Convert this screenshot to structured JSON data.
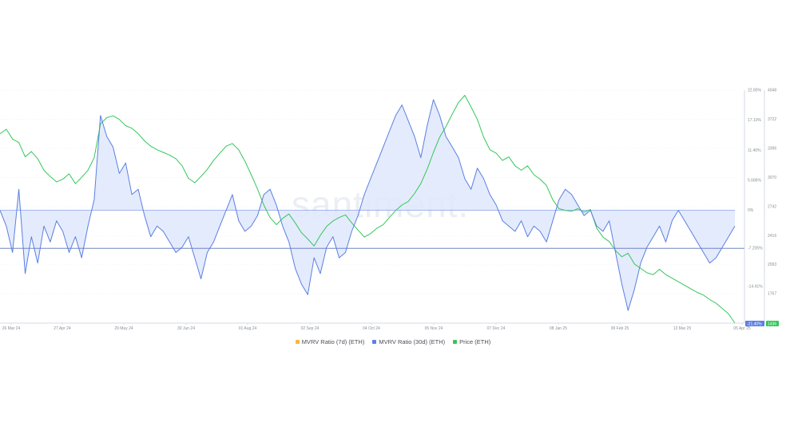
{
  "chart_data": {
    "type": "line",
    "watermark": "santiment.",
    "x_ticks": [
      "26 Mar 24",
      "27 Apr 24",
      "29 May 24",
      "30 Jun 24",
      "01 Aug 24",
      "02 Sep 24",
      "04 Oct 24",
      "05 Nov 24",
      "07 Dec 24",
      "08 Jan 25",
      "09 Feb 25",
      "13 Mar 25",
      "05 Apr 25"
    ],
    "y_left_ticks": [
      "22.80%",
      "17.10%",
      "11.40%",
      "5.686%",
      "0%",
      "-7.205%",
      "-14.41%",
      "-21.40%"
    ],
    "y_right_ticks": [
      "4048",
      "3722",
      "3396",
      "3070",
      "2742",
      "2416",
      "2093",
      "1767",
      "1436"
    ],
    "mvrv_ylim": [
      -21.4,
      22.8
    ],
    "price_ylim": [
      1436,
      4048
    ],
    "mvrv_latest_label": "-21.40%",
    "price_latest_label": "1436",
    "colors": {
      "mvrv_7d": "#f5b83d",
      "mvrv_30d": "#5b7fe3",
      "mvrv_fill": "#dfe7fb",
      "price": "#34c759",
      "grid": "#eef0f4",
      "axis": "#c9cedd",
      "reference_line": "#6e86c4"
    },
    "series": [
      {
        "name": "MVRV Ratio (7d) (ETH)",
        "values": []
      },
      {
        "name": "MVRV Ratio (30d) (ETH)",
        "values": [
          0,
          -3,
          -8,
          4,
          -12,
          -5,
          -10,
          -3,
          -6,
          -2,
          -4,
          -8,
          -5,
          -9,
          -3,
          2,
          18,
          14,
          12,
          7,
          9,
          3,
          4,
          -1,
          -5,
          -3,
          -4,
          -6,
          -8,
          -7,
          -5,
          -9,
          -13,
          -8,
          -6,
          -3,
          0,
          3,
          -2,
          -4,
          -3,
          -1,
          3,
          4,
          1,
          -3,
          -6,
          -11,
          -14,
          -16,
          -9,
          -12,
          -7,
          -5,
          -9,
          -8,
          -4,
          -1,
          3,
          6,
          9,
          12,
          15,
          18,
          20,
          17,
          14,
          10,
          16,
          21,
          18,
          14,
          12,
          10,
          6,
          4,
          8,
          6,
          3,
          1,
          -2,
          -3,
          -4,
          -2,
          -5,
          -3,
          -4,
          -6,
          -2,
          2,
          4,
          3,
          1,
          -1,
          0,
          -3,
          -4,
          -2,
          -8,
          -14,
          -19,
          -15,
          -10,
          -7,
          -5,
          -3,
          -6,
          -2,
          0,
          -2,
          -4,
          -6,
          -8,
          -10,
          -9,
          -7,
          -5,
          -3
        ]
      },
      {
        "name": "Price (ETH)",
        "values": [
          3560,
          3610,
          3500,
          3460,
          3300,
          3360,
          3280,
          3150,
          3080,
          3020,
          3050,
          3110,
          3000,
          3070,
          3150,
          3290,
          3670,
          3740,
          3760,
          3720,
          3650,
          3620,
          3560,
          3480,
          3420,
          3380,
          3350,
          3320,
          3280,
          3200,
          3060,
          3010,
          3080,
          3160,
          3260,
          3340,
          3420,
          3450,
          3380,
          3250,
          3100,
          2940,
          2760,
          2620,
          2540,
          2610,
          2660,
          2560,
          2450,
          2380,
          2300,
          2420,
          2520,
          2580,
          2620,
          2650,
          2560,
          2480,
          2400,
          2440,
          2500,
          2540,
          2620,
          2700,
          2760,
          2800,
          2890,
          3000,
          3160,
          3350,
          3520,
          3640,
          3780,
          3910,
          3990,
          3860,
          3720,
          3520,
          3380,
          3340,
          3260,
          3300,
          3200,
          3150,
          3200,
          3100,
          3050,
          2980,
          2820,
          2720,
          2700,
          2690,
          2720,
          2680,
          2710,
          2500,
          2400,
          2350,
          2250,
          2180,
          2220,
          2100,
          2050,
          2000,
          1980,
          2040,
          1980,
          1940,
          1900,
          1860,
          1820,
          1780,
          1750,
          1700,
          1660,
          1600,
          1540,
          1436
        ]
      }
    ]
  },
  "legend": {
    "items": [
      {
        "label": "MVRV Ratio (7d) (ETH)",
        "color": "#f5b83d"
      },
      {
        "label": "MVRV Ratio (30d) (ETH)",
        "color": "#5b7fe3"
      },
      {
        "label": "Price (ETH)",
        "color": "#34c759"
      }
    ]
  }
}
